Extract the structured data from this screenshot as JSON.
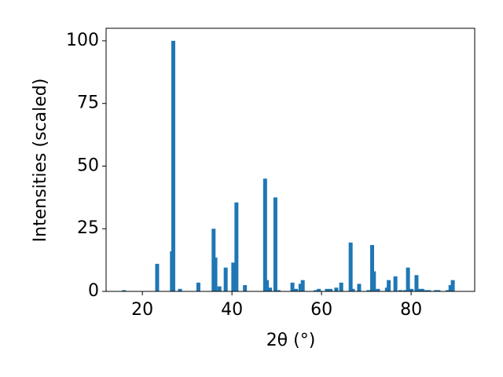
{
  "chart_data": {
    "type": "bar",
    "xlabel": "2θ (°)",
    "ylabel": "Intensities (scaled)",
    "x": [
      15.9,
      23.3,
      26.6,
      26.9,
      28.4,
      32.5,
      35.9,
      36.3,
      37.2,
      38.6,
      40.3,
      41.0,
      42.9,
      47.4,
      47.8,
      48.5,
      49.7,
      50.4,
      53.5,
      54.3,
      55.3,
      55.8,
      58.7,
      59.4,
      61.2,
      62.0,
      63.3,
      64.4,
      66.5,
      67.0,
      68.4,
      70.5,
      71.3,
      71.7,
      72.6,
      74.6,
      75.0,
      76.5,
      77.6,
      78.6,
      79.3,
      80.1,
      81.2,
      81.8,
      82.5,
      83.2,
      84.0,
      85.5,
      86.1,
      88.2,
      88.8,
      89.3
    ],
    "values": [
      0.5,
      11,
      16,
      100,
      1,
      3.5,
      25,
      13.5,
      2,
      9.5,
      11.5,
      35.5,
      2.5,
      45,
      4.5,
      1.5,
      37.5,
      0.5,
      3.5,
      1,
      3,
      4.5,
      0.5,
      1,
      1,
      1,
      1.5,
      3.5,
      19.5,
      1,
      3,
      0.5,
      18.5,
      8,
      1,
      1.5,
      4.5,
      6,
      0.5,
      0.5,
      9.5,
      1,
      6.5,
      1,
      1,
      0.5,
      0.5,
      0.5,
      0.5,
      0.5,
      2.5,
      4.5
    ],
    "color": "#1f77b4",
    "xlim": [
      11.9,
      94.2
    ],
    "xticks": [
      20,
      40,
      60,
      80
    ],
    "ylim": [
      0,
      105
    ],
    "yticks": [
      0,
      25,
      50,
      75,
      100
    ]
  }
}
